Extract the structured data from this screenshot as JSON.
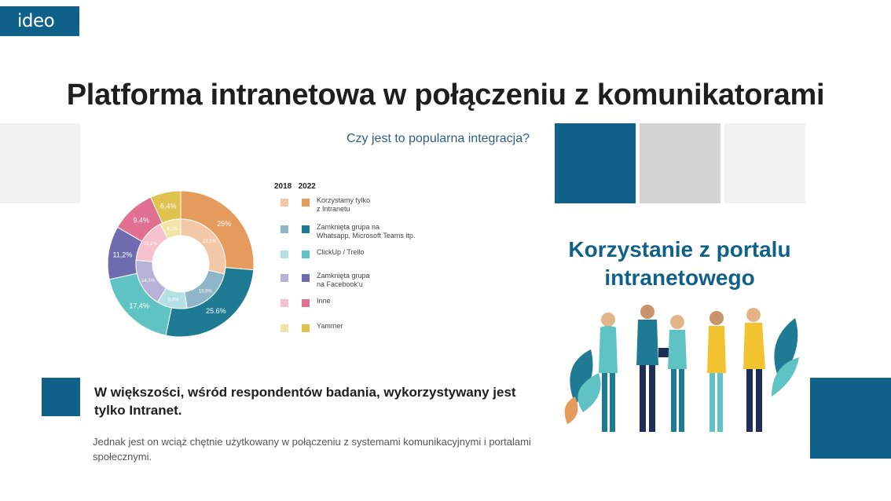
{
  "logo": {
    "text": "ideo"
  },
  "title": "Platforma intranetowa w połączeniu z komunikatorami",
  "subtitle": "Czy jest to popularna integracja?",
  "legend": {
    "year_a": "2018",
    "year_b": "2022",
    "items": [
      {
        "label": "Korzystamy tylko\nz Intranetu",
        "color_2018": "#f3c8a6",
        "color_2022": "#e49b5c"
      },
      {
        "label": "Zamknięta grupa na\nWhatsapp, Microsoft Teams itp.",
        "color_2018": "#8fb6c8",
        "color_2022": "#1f7a93"
      },
      {
        "label": "ClickUp / Trello",
        "color_2018": "#b3e1e3",
        "color_2022": "#5fc3c4"
      },
      {
        "label": "Zamknięta grupa\nna Facebook'u",
        "color_2018": "#b7b3d8",
        "color_2022": "#6e6caf"
      },
      {
        "label": "Inne",
        "color_2018": "#f4c1cd",
        "color_2022": "#e16f90"
      },
      {
        "label": "Yammer",
        "color_2018": "#f2e4a8",
        "color_2022": "#dfc34e"
      }
    ]
  },
  "chart_data": {
    "type": "pie",
    "series": [
      {
        "name": "2022",
        "values": [
          25,
          25.6,
          17.4,
          11.2,
          9.4,
          6.4
        ],
        "labels": [
          "25%",
          "25.6%",
          "17,4%",
          "11,2%",
          "9.4%",
          "6,4%"
        ]
      },
      {
        "name": "2018",
        "values": [
          23.2,
          15.5,
          8.8,
          14.3,
          13.1,
          6.1
        ],
        "labels": [
          "23,2%",
          "15,5%",
          "8,8%",
          "14,3%",
          "13,1%",
          "6,1%"
        ]
      }
    ],
    "categories": [
      "Korzystamy tylko z Intranetu",
      "Zamknięta grupa na Whatsapp, Microsoft Teams itp.",
      "ClickUp / Trello",
      "Zamknięta grupa na Facebook'u",
      "Inne",
      "Yammer"
    ]
  },
  "illustration": {
    "title": "Korzystanie z portalu intranetowego"
  },
  "bottom": {
    "heading": "W większości, wśród respondentów badania, wykorzystywany jest tylko Intranet.",
    "text": "Jednak jest on wciąż chętnie użytkowany w połączeniu z systemami komunikacyjnymi i portalami społecznymi."
  },
  "colors": {
    "brand": "#0f6189",
    "light_gray": "#f2f2f2",
    "mid_gray": "#d4d4d4"
  }
}
